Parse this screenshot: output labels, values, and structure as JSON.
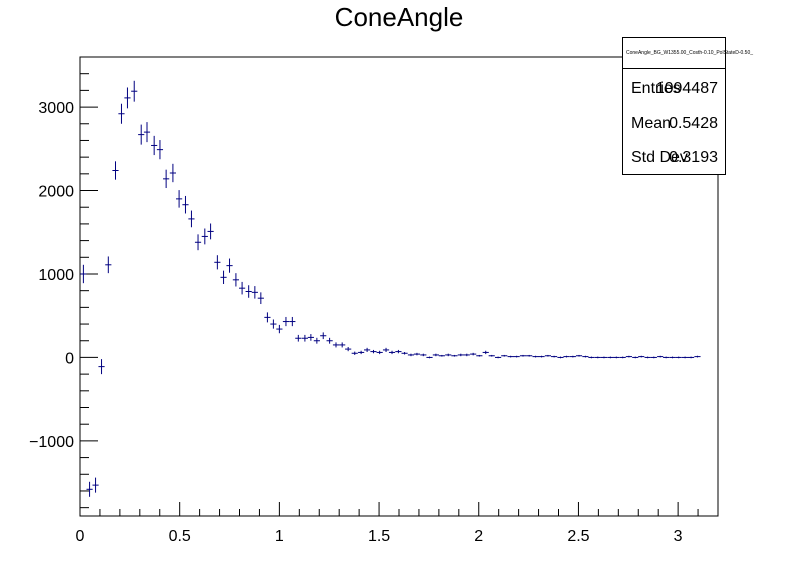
{
  "chart_data": {
    "type": "scatter",
    "title": "ConeAngle",
    "xlabel": "",
    "ylabel": "",
    "xlim": [
      0,
      3.2
    ],
    "ylim": [
      -1900,
      3600
    ],
    "xticks": [
      0,
      0.5,
      1,
      1.5,
      2,
      2.5,
      3
    ],
    "xtick_labels": [
      "0",
      "0.5",
      "1",
      "1.5",
      "2",
      "2.5",
      "3"
    ],
    "yticks": [
      -1000,
      0,
      1000,
      2000,
      3000
    ],
    "ytick_labels": [
      "−1000",
      "0",
      "1000",
      "2000",
      "3000"
    ],
    "grid": false,
    "marker_color": "#000080",
    "bin_half_width": 0.0155,
    "series": [
      {
        "x": [
          0.017,
          0.048,
          0.078,
          0.108,
          0.142,
          0.178,
          0.208,
          0.238,
          0.272,
          0.307,
          0.336,
          0.372,
          0.401,
          0.432,
          0.466,
          0.497,
          0.529,
          0.559,
          0.592,
          0.626,
          0.655,
          0.689,
          0.72,
          0.75,
          0.782,
          0.813,
          0.846,
          0.877,
          0.907,
          0.94,
          0.97,
          1.0,
          1.033,
          1.065,
          1.095,
          1.128,
          1.158,
          1.188,
          1.22,
          1.252,
          1.284,
          1.315,
          1.345,
          1.378,
          1.41,
          1.44,
          1.472,
          1.503,
          1.535,
          1.565,
          1.597,
          1.628,
          1.66,
          1.69,
          1.722,
          1.753,
          1.785,
          1.815,
          1.847,
          1.878,
          1.91,
          1.94,
          1.972,
          2.003,
          2.035,
          2.065,
          2.097,
          2.128,
          2.16,
          2.19,
          2.222,
          2.253,
          2.285,
          2.315,
          2.347,
          2.378,
          2.41,
          2.44,
          2.472,
          2.503,
          2.535,
          2.565,
          2.597,
          2.628,
          2.66,
          2.69,
          2.722,
          2.753,
          2.785,
          2.815,
          2.847,
          2.878,
          2.91,
          2.94,
          2.972,
          3.003,
          3.035,
          3.065,
          3.097
        ],
        "y": [
          1000,
          -1580,
          -1530,
          -110,
          1110,
          2240,
          2920,
          3110,
          3190,
          2670,
          2700,
          2540,
          2490,
          2140,
          2210,
          1900,
          1830,
          1660,
          1380,
          1450,
          1510,
          1140,
          960,
          1100,
          930,
          830,
          790,
          780,
          710,
          480,
          400,
          340,
          430,
          430,
          230,
          230,
          240,
          200,
          260,
          200,
          150,
          150,
          100,
          50,
          60,
          90,
          70,
          60,
          90,
          60,
          70,
          50,
          30,
          40,
          30,
          0,
          30,
          20,
          30,
          20,
          30,
          30,
          40,
          20,
          60,
          20,
          0,
          20,
          10,
          10,
          20,
          20,
          10,
          10,
          20,
          10,
          0,
          10,
          10,
          20,
          10,
          0,
          0,
          0,
          0,
          0,
          0,
          10,
          0,
          10,
          0,
          0,
          10,
          0,
          0,
          0,
          0,
          0,
          10
        ],
        "yerr": [
          110,
          90,
          90,
          90,
          100,
          110,
          120,
          125,
          125,
          120,
          120,
          115,
          115,
          110,
          110,
          105,
          105,
          100,
          95,
          95,
          95,
          85,
          80,
          85,
          80,
          75,
          75,
          75,
          70,
          60,
          55,
          50,
          55,
          55,
          40,
          40,
          40,
          35,
          40,
          35,
          30,
          30,
          25,
          20,
          20,
          25,
          20,
          20,
          25,
          20,
          20,
          15,
          15,
          15,
          15,
          10,
          15,
          10,
          15,
          10,
          15,
          15,
          15,
          10,
          20,
          10,
          10,
          10,
          10,
          10,
          10,
          10,
          10,
          10,
          10,
          10,
          10,
          10,
          10,
          10,
          10,
          10,
          10,
          10,
          10,
          10,
          10,
          10,
          10,
          10,
          10,
          10,
          10,
          10,
          10,
          10,
          10,
          10,
          10
        ]
      }
    ]
  },
  "stats": {
    "hist_name": "ConeAngle_BG_W1355.00_Costh-0.10_PolStateD-0.50_",
    "rows": [
      {
        "key": "Entries",
        "value": "1094487"
      },
      {
        "key": "Mean",
        "value": "0.5428"
      },
      {
        "key": "Std Dev",
        "value": "0.3193"
      }
    ]
  }
}
